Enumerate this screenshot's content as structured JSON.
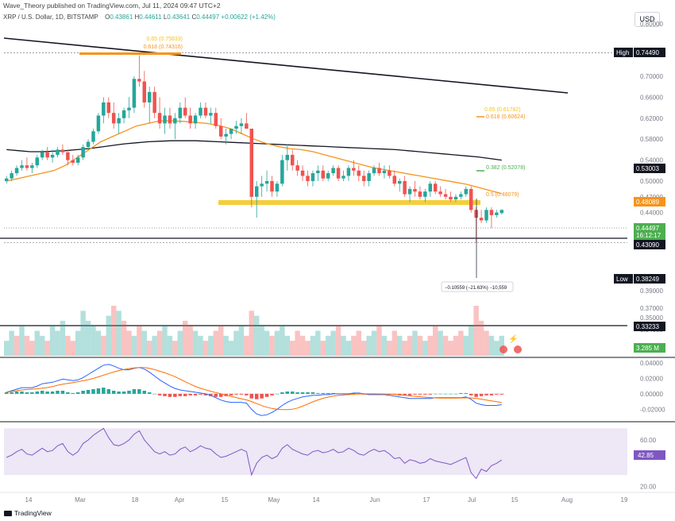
{
  "header": {
    "info": "Wave_Theory published on TradingView.com, Jul 11, 2024 09:47 UTC+2",
    "symbol": "XRP / U.S. Dollar, 1D, BITSTAMP",
    "open_label": "O",
    "open": "0.43861",
    "high_label": "H",
    "high": "0.44611",
    "low_label": "L",
    "low": "0.43641",
    "close_label": "C",
    "close": "0.44497",
    "change": "+0.00622 (+1.42%)"
  },
  "toolbar": {
    "currency": "USD"
  },
  "footer": {
    "brand": "TradingView"
  },
  "colors": {
    "up": "#26a69a",
    "down": "#ef5350",
    "ema_orange": "#f7931a",
    "ema_black": "#131722",
    "fib_gold": "#f5c518",
    "fib_green": "#4caf50",
    "macd_line": "#2962ff",
    "signal_line": "#ff6d00",
    "rsi_line": "#7e57c2",
    "rsi_band": "#ede7f6"
  },
  "chart_data": [
    {
      "type": "candlestick",
      "title": "XRP / U.S. Dollar, 1D, BITSTAMP",
      "ylim": [
        0.3,
        0.8
      ],
      "y_ticks": [
        "0.80000",
        "0.75000",
        "0.70000",
        "0.66000",
        "0.62000",
        "0.58000",
        "0.54000",
        "0.50000",
        "0.47000",
        "0.44000",
        "0.41000",
        "0.39000",
        "0.37000",
        "0.35000",
        "0.34000"
      ],
      "x_ticks": [
        "14",
        "Mar",
        "18",
        "Apr",
        "15",
        "May",
        "14",
        "Jun",
        "17",
        "Jul",
        "15",
        "Aug",
        "19"
      ],
      "price_labels": [
        {
          "label": "High",
          "value": "0.74490"
        },
        {
          "label": "",
          "value": "0.53003"
        },
        {
          "label": "",
          "value": "0.48089"
        },
        {
          "label": "",
          "value": "0.44497"
        },
        {
          "label": "",
          "value": "16:12:17"
        },
        {
          "label": "",
          "value": "0.43090"
        },
        {
          "label": "Low",
          "value": "0.38249"
        },
        {
          "label": "",
          "value": "0.33233"
        },
        {
          "label": "",
          "value": "3.285 M"
        }
      ],
      "fib_levels": [
        {
          "text": "0.65 (0.75833)",
          "value": 0.75833
        },
        {
          "text": "0.618 (0.74316)",
          "value": 0.74316
        },
        {
          "text": "0.65 (0.61782)",
          "value": 0.61782
        },
        {
          "text": "0.618 (0.60624)",
          "value": 0.60624
        },
        {
          "text": "0.382 (0.52078)",
          "value": 0.52078
        },
        {
          "text": "0.5 (0.48079)",
          "value": 0.48079
        }
      ],
      "measure_label": "−0.10559 (−21.63%) −10,559",
      "candles": [
        [
          0.5,
          0.51,
          0.495,
          0.505
        ],
        [
          0.505,
          0.52,
          0.5,
          0.515
        ],
        [
          0.515,
          0.53,
          0.51,
          0.525
        ],
        [
          0.525,
          0.54,
          0.52,
          0.53
        ],
        [
          0.53,
          0.545,
          0.52,
          0.525
        ],
        [
          0.525,
          0.535,
          0.515,
          0.53
        ],
        [
          0.53,
          0.55,
          0.525,
          0.545
        ],
        [
          0.545,
          0.56,
          0.54,
          0.555
        ],
        [
          0.555,
          0.565,
          0.54,
          0.545
        ],
        [
          0.545,
          0.56,
          0.535,
          0.55
        ],
        [
          0.55,
          0.565,
          0.545,
          0.56
        ],
        [
          0.56,
          0.57,
          0.55,
          0.555
        ],
        [
          0.555,
          0.56,
          0.53,
          0.54
        ],
        [
          0.54,
          0.55,
          0.53,
          0.535
        ],
        [
          0.535,
          0.55,
          0.53,
          0.545
        ],
        [
          0.545,
          0.57,
          0.54,
          0.565
        ],
        [
          0.565,
          0.58,
          0.56,
          0.575
        ],
        [
          0.575,
          0.6,
          0.57,
          0.595
        ],
        [
          0.595,
          0.63,
          0.59,
          0.625
        ],
        [
          0.625,
          0.66,
          0.61,
          0.65
        ],
        [
          0.65,
          0.66,
          0.62,
          0.63
        ],
        [
          0.63,
          0.65,
          0.6,
          0.61
        ],
        [
          0.61,
          0.63,
          0.59,
          0.62
        ],
        [
          0.62,
          0.64,
          0.61,
          0.635
        ],
        [
          0.635,
          0.66,
          0.62,
          0.64
        ],
        [
          0.64,
          0.7,
          0.63,
          0.695
        ],
        [
          0.695,
          0.74,
          0.68,
          0.69
        ],
        [
          0.69,
          0.71,
          0.64,
          0.65
        ],
        [
          0.65,
          0.68,
          0.61,
          0.67
        ],
        [
          0.67,
          0.68,
          0.62,
          0.63
        ],
        [
          0.63,
          0.66,
          0.6,
          0.61
        ],
        [
          0.61,
          0.64,
          0.59,
          0.625
        ],
        [
          0.625,
          0.64,
          0.6,
          0.61
        ],
        [
          0.61,
          0.63,
          0.58,
          0.62
        ],
        [
          0.62,
          0.65,
          0.61,
          0.64
        ],
        [
          0.64,
          0.66,
          0.62,
          0.625
        ],
        [
          0.625,
          0.64,
          0.6,
          0.61
        ],
        [
          0.61,
          0.63,
          0.6,
          0.625
        ],
        [
          0.625,
          0.65,
          0.62,
          0.64
        ],
        [
          0.64,
          0.65,
          0.62,
          0.625
        ],
        [
          0.625,
          0.64,
          0.61,
          0.63
        ],
        [
          0.63,
          0.64,
          0.6,
          0.605
        ],
        [
          0.605,
          0.62,
          0.58,
          0.585
        ],
        [
          0.585,
          0.6,
          0.57,
          0.59
        ],
        [
          0.59,
          0.6,
          0.58,
          0.6
        ],
        [
          0.6,
          0.615,
          0.59,
          0.605
        ],
        [
          0.605,
          0.62,
          0.59,
          0.61
        ],
        [
          0.61,
          0.63,
          0.6,
          0.6
        ],
        [
          0.6,
          0.6,
          0.45,
          0.47
        ],
        [
          0.47,
          0.5,
          0.43,
          0.49
        ],
        [
          0.49,
          0.51,
          0.47,
          0.495
        ],
        [
          0.495,
          0.52,
          0.48,
          0.5
        ],
        [
          0.5,
          0.51,
          0.47,
          0.48
        ],
        [
          0.48,
          0.5,
          0.47,
          0.495
        ],
        [
          0.495,
          0.55,
          0.49,
          0.54
        ],
        [
          0.54,
          0.57,
          0.52,
          0.55
        ],
        [
          0.55,
          0.56,
          0.52,
          0.53
        ],
        [
          0.53,
          0.54,
          0.51,
          0.52
        ],
        [
          0.52,
          0.53,
          0.5,
          0.51
        ],
        [
          0.51,
          0.52,
          0.49,
          0.5
        ],
        [
          0.5,
          0.52,
          0.49,
          0.515
        ],
        [
          0.515,
          0.53,
          0.5,
          0.52
        ],
        [
          0.52,
          0.53,
          0.5,
          0.505
        ],
        [
          0.505,
          0.52,
          0.5,
          0.515
        ],
        [
          0.515,
          0.53,
          0.51,
          0.525
        ],
        [
          0.525,
          0.53,
          0.5,
          0.505
        ],
        [
          0.505,
          0.52,
          0.5,
          0.51
        ],
        [
          0.51,
          0.53,
          0.5,
          0.525
        ],
        [
          0.525,
          0.54,
          0.51,
          0.52
        ],
        [
          0.52,
          0.53,
          0.5,
          0.51
        ],
        [
          0.51,
          0.52,
          0.49,
          0.5
        ],
        [
          0.5,
          0.52,
          0.49,
          0.515
        ],
        [
          0.515,
          0.53,
          0.51,
          0.525
        ],
        [
          0.525,
          0.535,
          0.51,
          0.515
        ],
        [
          0.515,
          0.53,
          0.505,
          0.52
        ],
        [
          0.52,
          0.53,
          0.505,
          0.51
        ],
        [
          0.51,
          0.52,
          0.49,
          0.495
        ],
        [
          0.495,
          0.505,
          0.48,
          0.5
        ],
        [
          0.5,
          0.51,
          0.47,
          0.475
        ],
        [
          0.475,
          0.49,
          0.46,
          0.485
        ],
        [
          0.485,
          0.5,
          0.47,
          0.48
        ],
        [
          0.48,
          0.49,
          0.465,
          0.47
        ],
        [
          0.47,
          0.485,
          0.46,
          0.48
        ],
        [
          0.48,
          0.5,
          0.47,
          0.495
        ],
        [
          0.495,
          0.5,
          0.475,
          0.48
        ],
        [
          0.48,
          0.49,
          0.47,
          0.475
        ],
        [
          0.475,
          0.485,
          0.465,
          0.47
        ],
        [
          0.47,
          0.48,
          0.46,
          0.465
        ],
        [
          0.465,
          0.475,
          0.46,
          0.47
        ],
        [
          0.47,
          0.48,
          0.465,
          0.475
        ],
        [
          0.475,
          0.49,
          0.47,
          0.485
        ],
        [
          0.485,
          0.49,
          0.44,
          0.445
        ],
        [
          0.445,
          0.45,
          0.383,
          0.43
        ],
        [
          0.43,
          0.445,
          0.42,
          0.425
        ],
        [
          0.425,
          0.45,
          0.42,
          0.445
        ],
        [
          0.445,
          0.45,
          0.41,
          0.435
        ],
        [
          0.435,
          0.445,
          0.43,
          0.44
        ],
        [
          0.439,
          0.446,
          0.436,
          0.445
        ]
      ],
      "ema_orange": [
        0.5,
        0.505,
        0.51,
        0.515,
        0.52,
        0.53,
        0.545,
        0.56,
        0.575,
        0.585,
        0.595,
        0.605,
        0.61,
        0.615,
        0.615,
        0.614,
        0.612,
        0.61,
        0.606,
        0.6,
        0.59,
        0.58,
        0.572,
        0.566,
        0.562,
        0.56,
        0.556,
        0.55,
        0.544,
        0.538,
        0.532,
        0.526,
        0.522,
        0.518,
        0.514,
        0.51,
        0.506,
        0.502,
        0.498,
        0.494,
        0.488,
        0.482,
        0.476
      ],
      "ema_black": [
        0.56,
        0.558,
        0.556,
        0.556,
        0.557,
        0.558,
        0.56,
        0.562,
        0.565,
        0.568,
        0.571,
        0.573,
        0.575,
        0.576,
        0.577,
        0.577,
        0.577,
        0.576,
        0.575,
        0.574,
        0.573,
        0.572,
        0.571,
        0.57,
        0.569,
        0.568,
        0.567,
        0.566,
        0.565,
        0.564,
        0.563,
        0.562,
        0.561,
        0.56,
        0.558,
        0.556,
        0.554,
        0.552,
        0.55,
        0.548,
        0.546,
        0.543,
        0.54
      ]
    },
    {
      "type": "bar",
      "title": "Volume",
      "value_label": "3.285 M",
      "values": [
        3,
        5,
        4,
        6,
        4,
        3,
        5,
        4,
        3,
        6,
        5,
        7,
        4,
        3,
        5,
        9,
        7,
        6,
        5,
        4,
        8,
        10,
        9,
        7,
        5,
        4,
        6,
        5,
        3,
        4,
        5,
        6,
        4,
        3,
        5,
        7,
        6,
        5,
        4,
        3,
        4,
        5,
        6,
        4,
        3,
        5,
        6,
        4,
        9,
        8,
        6,
        5,
        4,
        5,
        6,
        4,
        3,
        5,
        4,
        3,
        4,
        5,
        3,
        4,
        5,
        6,
        4,
        3,
        4,
        5,
        3,
        4,
        5,
        6,
        4,
        3,
        5,
        4,
        3,
        4,
        5,
        4,
        3,
        4,
        6,
        5,
        4,
        3,
        4,
        5,
        4,
        6,
        10,
        7,
        5,
        4,
        3,
        4
      ],
      "up": [
        1,
        1,
        0,
        1,
        0,
        0,
        1,
        1,
        0,
        1,
        1,
        1,
        0,
        0,
        1,
        1,
        1,
        1,
        1,
        0,
        1,
        0,
        1,
        0,
        0,
        1,
        0,
        1,
        0,
        1,
        0,
        1,
        1,
        0,
        1,
        0,
        0,
        1,
        1,
        0,
        1,
        0,
        0,
        1,
        1,
        1,
        1,
        0,
        0,
        1,
        1,
        1,
        0,
        1,
        1,
        1,
        0,
        0,
        0,
        0,
        1,
        1,
        0,
        1,
        1,
        0,
        1,
        1,
        0,
        0,
        0,
        1,
        1,
        0,
        1,
        0,
        0,
        1,
        0,
        0,
        1,
        0,
        1,
        0,
        0,
        1,
        0,
        0,
        0,
        0,
        1,
        1,
        0,
        0,
        0,
        1,
        1,
        1
      ]
    },
    {
      "type": "bar",
      "title": "MACD",
      "y_ticks": [
        "0.04000",
        "0.02000",
        "0.00000",
        "-0.02000"
      ],
      "ylim": [
        -0.035,
        0.045
      ],
      "histogram": [
        0.002,
        0.002,
        0.003,
        0.003,
        0.002,
        0.002,
        0.003,
        0.004,
        0.003,
        0.003,
        0.004,
        0.004,
        0.002,
        0.001,
        0.002,
        0.004,
        0.005,
        0.006,
        0.007,
        0.008,
        0.006,
        0.004,
        0.003,
        0.003,
        0.004,
        0.006,
        0.006,
        0.004,
        0.002,
        0.0,
        -0.002,
        -0.003,
        -0.004,
        -0.004,
        -0.003,
        -0.003,
        -0.002,
        -0.002,
        -0.001,
        -0.002,
        -0.003,
        -0.004,
        -0.004,
        -0.003,
        -0.002,
        -0.001,
        -0.001,
        -0.002,
        -0.006,
        -0.007,
        -0.006,
        -0.004,
        -0.002,
        0.0,
        0.002,
        0.003,
        0.003,
        0.002,
        0.002,
        0.002,
        0.002,
        0.001,
        0.001,
        0.001,
        0.001,
        0.0,
        0.0,
        0.0,
        0.001,
        0.0,
        -0.001,
        -0.001,
        0.0,
        0.0,
        0.0,
        -0.001,
        -0.001,
        -0.002,
        -0.002,
        -0.002,
        -0.001,
        -0.001,
        -0.001,
        -0.001,
        0.0,
        0.0,
        0.0,
        0.0,
        0.0,
        0.001,
        0.001,
        -0.002,
        -0.004,
        -0.003,
        -0.002,
        -0.002,
        -0.001,
        -0.001
      ],
      "macd": [
        0.002,
        0.004,
        0.006,
        0.008,
        0.008,
        0.008,
        0.01,
        0.013,
        0.014,
        0.015,
        0.017,
        0.019,
        0.018,
        0.017,
        0.018,
        0.021,
        0.025,
        0.029,
        0.033,
        0.037,
        0.038,
        0.036,
        0.033,
        0.031,
        0.031,
        0.033,
        0.034,
        0.032,
        0.028,
        0.023,
        0.018,
        0.014,
        0.01,
        0.007,
        0.005,
        0.004,
        0.003,
        0.002,
        0.001,
        0.0,
        -0.002,
        -0.005,
        -0.008,
        -0.01,
        -0.011,
        -0.011,
        -0.011,
        -0.012,
        -0.02,
        -0.026,
        -0.028,
        -0.027,
        -0.024,
        -0.02,
        -0.015,
        -0.011,
        -0.008,
        -0.006,
        -0.004,
        -0.003,
        -0.002,
        -0.002,
        -0.001,
        -0.001,
        0.0,
        0.0,
        0.0,
        0.0,
        0.001,
        0.001,
        0.0,
        -0.001,
        -0.001,
        -0.001,
        -0.001,
        -0.002,
        -0.003,
        -0.004,
        -0.005,
        -0.006,
        -0.006,
        -0.006,
        -0.006,
        -0.006,
        -0.005,
        -0.005,
        -0.005,
        -0.005,
        -0.005,
        -0.005,
        -0.004,
        -0.007,
        -0.012,
        -0.014,
        -0.015,
        -0.015,
        -0.015,
        -0.014
      ]
    },
    {
      "type": "line",
      "title": "RSI",
      "y_ticks": [
        "60.00",
        "42.85",
        "20.00"
      ],
      "ylim": [
        15,
        75
      ],
      "band": [
        30,
        70
      ],
      "value_label": "42.85",
      "values": [
        45,
        47,
        50,
        52,
        48,
        47,
        50,
        53,
        50,
        51,
        55,
        57,
        50,
        47,
        50,
        57,
        60,
        64,
        67,
        70,
        62,
        56,
        55,
        57,
        60,
        65,
        68,
        60,
        55,
        50,
        48,
        50,
        47,
        48,
        52,
        54,
        50,
        52,
        55,
        53,
        52,
        48,
        45,
        46,
        48,
        50,
        52,
        50,
        30,
        40,
        45,
        47,
        44,
        46,
        53,
        56,
        52,
        50,
        48,
        47,
        50,
        51,
        49,
        50,
        52,
        49,
        50,
        53,
        51,
        48,
        47,
        50,
        52,
        50,
        51,
        48,
        44,
        45,
        40,
        43,
        42,
        40,
        41,
        44,
        42,
        41,
        40,
        39,
        41,
        43,
        45,
        32,
        27,
        35,
        33,
        38,
        40,
        42.85
      ]
    }
  ]
}
